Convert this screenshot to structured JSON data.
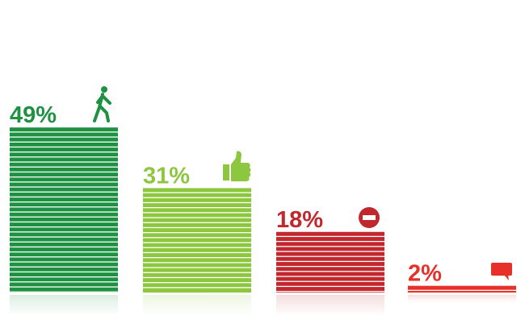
{
  "chart_data": {
    "type": "bar",
    "categories": [
      null,
      null,
      null,
      null
    ],
    "values": [
      49,
      31,
      18,
      2
    ],
    "value_labels": [
      "49%",
      "31%",
      "18%",
      "2%"
    ],
    "colors": [
      "#1e9142",
      "#8dc63f",
      "#c1272d",
      "#e8302a"
    ]
  }
}
